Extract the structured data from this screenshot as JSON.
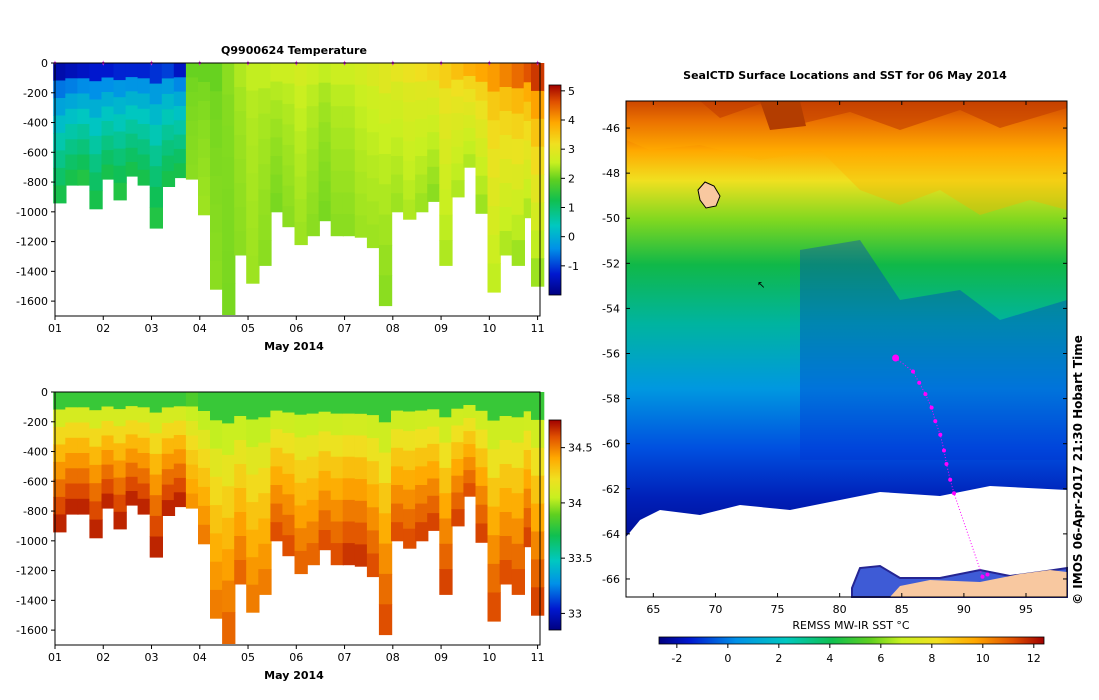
{
  "charts": {
    "temperature": {
      "type": "heatmap",
      "title": "Q9900624  Temperature",
      "xlabel": "May 2014",
      "x_ticks": [
        "01",
        "02",
        "03",
        "04",
        "05",
        "06",
        "07",
        "08",
        "09",
        "10",
        "11"
      ],
      "x_range": [
        1,
        11.05
      ],
      "y_ticks": [
        0,
        -200,
        -400,
        -600,
        -800,
        -1000,
        -1200,
        -1400,
        -1600
      ],
      "y_range": [
        0,
        -1700
      ],
      "colorbar_ticks": [
        5,
        4,
        3,
        2,
        1,
        0,
        -1
      ],
      "colorbar_range": [
        -2,
        5.2
      ]
    },
    "salinity": {
      "type": "heatmap",
      "xlabel": "May 2014",
      "x_ticks": [
        "01",
        "02",
        "03",
        "04",
        "05",
        "06",
        "07",
        "08",
        "09",
        "10",
        "11"
      ],
      "x_range": [
        1,
        11.05
      ],
      "y_ticks": [
        0,
        -200,
        -400,
        -600,
        -800,
        -1000,
        -1200,
        -1400,
        -1600
      ],
      "y_range": [
        0,
        -1700
      ],
      "colorbar_ticks": [
        "34.5",
        "34",
        "33.5",
        "33"
      ],
      "colorbar_range": [
        32.85,
        34.75
      ]
    },
    "map": {
      "type": "heatmap",
      "title": "SealCTD Surface Locations and SST for 06 May 2014",
      "x_ticks": [
        "65",
        "70",
        "75",
        "80",
        "85",
        "90",
        "95"
      ],
      "x_range": [
        62.8,
        98.3
      ],
      "y_ticks": [
        "-46",
        "-48",
        "-50",
        "-52",
        "-54",
        "-56",
        "-58",
        "-60",
        "-62",
        "-64",
        "-66"
      ],
      "y_range": [
        -44.8,
        -66.8
      ],
      "colorbar_label": "REMSS MW-IR SST °C",
      "colorbar_ticks": [
        "-2",
        "0",
        "2",
        "4",
        "6",
        "8",
        "10",
        "12"
      ],
      "colorbar_range": [
        -2.7,
        12.4
      ],
      "credit": "© IMOS 06-Apr-2017 21:30 Hobart Time"
    }
  },
  "chart_data": [
    {
      "type": "heatmap",
      "title": "Q9900624  Temperature",
      "xlabel": "May 2014",
      "ylabel": "",
      "x": [
        1.1,
        1.35,
        1.6,
        1.85,
        2.1,
        2.35,
        2.6,
        2.85,
        3.1,
        3.35,
        3.6,
        3.85,
        4.1,
        4.35,
        4.6,
        4.85,
        5.1,
        5.35,
        5.6,
        5.85,
        6.1,
        6.35,
        6.6,
        6.85,
        7.1,
        7.35,
        7.6,
        7.85,
        8.1,
        8.35,
        8.6,
        8.85,
        9.1,
        9.35,
        9.6,
        9.85,
        10.1,
        10.35,
        10.6,
        10.85,
        11.0
      ],
      "profile_max_depth_m": [
        940,
        820,
        820,
        980,
        780,
        920,
        760,
        820,
        1110,
        830,
        770,
        780,
        1020,
        1520,
        1690,
        1290,
        1480,
        1360,
        1000,
        1100,
        1220,
        1160,
        1060,
        1160,
        1160,
        1170,
        1240,
        1630,
        1000,
        1050,
        1000,
        930,
        1360,
        900,
        700,
        1010,
        1540,
        1290,
        1360,
        1040,
        1500
      ],
      "surface_temperature_c": [
        -1.6,
        -1.5,
        -1.4,
        -1.3,
        -1.3,
        -1.2,
        -1.2,
        -1.2,
        -1.1,
        -1.0,
        -1.4,
        2.0,
        2.0,
        2.0,
        2.2,
        2.4,
        2.5,
        2.5,
        2.6,
        2.6,
        2.7,
        2.6,
        2.5,
        2.6,
        2.6,
        2.7,
        2.8,
        2.9,
        3.0,
        3.1,
        3.2,
        3.3,
        3.4,
        3.6,
        3.8,
        3.9,
        4.0,
        4.2,
        4.4,
        4.6,
        4.8
      ],
      "deep_temperature_c": [
        1.3,
        1.3,
        1.4,
        1.3,
        1.3,
        1.4,
        1.3,
        1.3,
        1.4,
        1.3,
        1.3,
        2.2,
        2.3,
        2.2,
        2.1,
        2.2,
        2.3,
        2.2,
        2.1,
        2.2,
        2.3,
        2.2,
        2.1,
        2.2,
        2.2,
        2.3,
        2.3,
        2.2,
        2.3,
        2.4,
        2.3,
        2.2,
        2.4,
        2.4,
        2.4,
        2.3,
        2.5,
        2.4,
        2.3,
        2.4,
        2.3
      ],
      "colorbar_range": [
        -2,
        5.2
      ],
      "ylim": [
        -1700,
        0
      ],
      "xlim": [
        1,
        11.05
      ]
    },
    {
      "type": "heatmap",
      "title": "",
      "xlabel": "May 2014",
      "ylabel": "",
      "x": [
        1.1,
        1.35,
        1.6,
        1.85,
        2.1,
        2.35,
        2.6,
        2.85,
        3.1,
        3.35,
        3.6,
        3.85,
        4.1,
        4.35,
        4.6,
        4.85,
        5.1,
        5.35,
        5.6,
        5.85,
        6.1,
        6.35,
        6.6,
        6.85,
        7.1,
        7.35,
        7.6,
        7.85,
        8.1,
        8.35,
        8.6,
        8.85,
        9.1,
        9.35,
        9.6,
        9.85,
        10.1,
        10.35,
        10.6,
        10.85,
        11.0
      ],
      "profile_max_depth_m": [
        940,
        820,
        820,
        980,
        780,
        920,
        760,
        820,
        1110,
        830,
        770,
        780,
        1020,
        1520,
        1690,
        1290,
        1480,
        1360,
        1000,
        1100,
        1220,
        1160,
        1060,
        1160,
        1160,
        1170,
        1240,
        1630,
        1000,
        1050,
        1000,
        930,
        1360,
        900,
        700,
        1010,
        1540,
        1290,
        1360,
        1040,
        1500
      ],
      "surface_salinity": [
        33.8,
        33.8,
        33.8,
        33.8,
        33.8,
        33.8,
        33.8,
        33.8,
        33.8,
        33.8,
        33.8,
        33.85,
        33.8,
        33.8,
        33.8,
        33.8,
        33.8,
        33.8,
        33.8,
        33.8,
        33.8,
        33.8,
        33.8,
        33.8,
        33.8,
        33.8,
        33.8,
        33.8,
        33.8,
        33.8,
        33.8,
        33.8,
        33.8,
        33.8,
        33.8,
        33.8,
        33.8,
        33.8,
        33.8,
        33.8,
        33.8
      ],
      "deep_salinity": [
        34.68,
        34.68,
        34.68,
        34.68,
        34.68,
        34.68,
        34.68,
        34.68,
        34.68,
        34.68,
        34.68,
        34.45,
        34.5,
        34.5,
        34.55,
        34.55,
        34.5,
        34.5,
        34.6,
        34.6,
        34.55,
        34.55,
        34.6,
        34.6,
        34.65,
        34.65,
        34.6,
        34.6,
        34.6,
        34.6,
        34.62,
        34.62,
        34.62,
        34.62,
        34.6,
        34.62,
        34.6,
        34.6,
        34.6,
        34.62,
        34.62
      ],
      "colorbar_range": [
        32.85,
        34.75
      ],
      "ylim": [
        -1700,
        0
      ],
      "xlim": [
        1,
        11.05
      ]
    },
    {
      "type": "heatmap",
      "title": "SealCTD Surface Locations and SST for 06 May 2014",
      "xlabel": "",
      "ylabel": "",
      "lon_range": [
        62.8,
        98.3
      ],
      "lat_range": [
        -66.8,
        -44.8
      ],
      "sst_by_latitude": [
        {
          "lat": -45.5,
          "sst": 10.5
        },
        {
          "lat": -47,
          "sst": 8.5
        },
        {
          "lat": -48.5,
          "sst": 7.0
        },
        {
          "lat": -50,
          "sst": 6.0
        },
        {
          "lat": -52,
          "sst": 4.5
        },
        {
          "lat": -54,
          "sst": 3.5
        },
        {
          "lat": -56,
          "sst": 2.0
        },
        {
          "lat": -58,
          "sst": 1.0
        },
        {
          "lat": -60,
          "sst": 0.0
        },
        {
          "lat": -62,
          "sst": -1.0
        },
        {
          "lat": -63.5,
          "sst": -1.8
        }
      ],
      "seal_track": [
        {
          "lon": 84.5,
          "lat": -56.2
        },
        {
          "lon": 85.9,
          "lat": -56.8
        },
        {
          "lon": 86.4,
          "lat": -57.3
        },
        {
          "lon": 86.9,
          "lat": -57.8
        },
        {
          "lon": 87.4,
          "lat": -58.4
        },
        {
          "lon": 87.7,
          "lat": -59.0
        },
        {
          "lon": 88.1,
          "lat": -59.6
        },
        {
          "lon": 88.4,
          "lat": -60.3
        },
        {
          "lon": 88.6,
          "lat": -60.9
        },
        {
          "lon": 88.9,
          "lat": -61.6
        },
        {
          "lon": 89.2,
          "lat": -62.2
        },
        {
          "lon": 91.5,
          "lat": -65.9
        },
        {
          "lon": 91.9,
          "lat": -65.8
        }
      ],
      "colorbar_range": [
        -2.7,
        12.4
      ]
    }
  ]
}
